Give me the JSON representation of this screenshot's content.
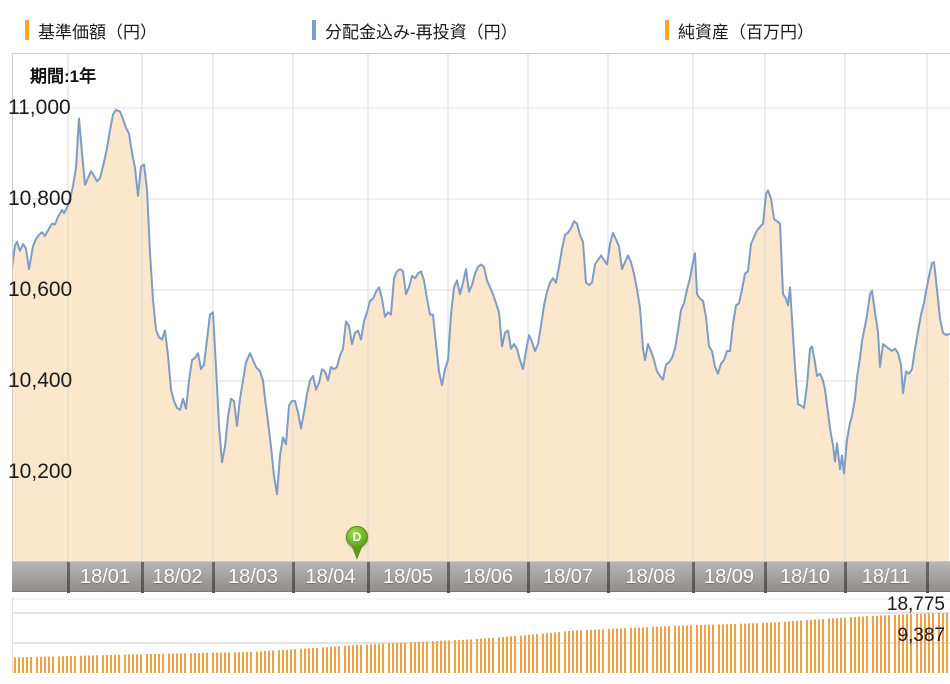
{
  "legend": {
    "items": [
      {
        "label": "基準価額（円）",
        "color": "#F5A623"
      },
      {
        "label": "分配金込み-再投資（円）",
        "color": "#7F9CC5"
      },
      {
        "label": "純資産（百万円）",
        "color": "#F5A623"
      }
    ]
  },
  "period_label": "期間:1年",
  "marker": {
    "label": "D",
    "color": "#6FB024"
  },
  "chart_data": [
    {
      "type": "area",
      "name": "nav_price",
      "title": "基準価額（円）",
      "ylabel": "円",
      "ylim": [
        10000,
        11120
      ],
      "yticks": [
        11000,
        10800,
        10600,
        10400,
        10200
      ],
      "grid": true,
      "x_months": [
        "18/01",
        "18/02",
        "18/03",
        "18/04",
        "18/05",
        "18/06",
        "18/07",
        "18/08",
        "18/09",
        "18/10",
        "18/11"
      ],
      "line_color": "#7F9CC5",
      "fill_color": "#FAE7CC",
      "points": [
        [
          12,
          10648
        ],
        [
          15,
          10698
        ],
        [
          17,
          10706
        ],
        [
          20,
          10686
        ],
        [
          23,
          10701
        ],
        [
          26,
          10691
        ],
        [
          29,
          10646
        ],
        [
          33,
          10696
        ],
        [
          36,
          10712
        ],
        [
          39,
          10721
        ],
        [
          42,
          10727
        ],
        [
          45,
          10719
        ],
        [
          48,
          10731
        ],
        [
          52,
          10746
        ],
        [
          55,
          10744
        ],
        [
          58,
          10761
        ],
        [
          62,
          10776
        ],
        [
          64,
          10769
        ],
        [
          67,
          10781
        ],
        [
          70,
          10800
        ],
        [
          73,
          10829
        ],
        [
          76,
          10868
        ],
        [
          79,
          10977
        ],
        [
          82,
          10902
        ],
        [
          85,
          10831
        ],
        [
          88,
          10846
        ],
        [
          91,
          10861
        ],
        [
          94,
          10851
        ],
        [
          97,
          10839
        ],
        [
          100,
          10846
        ],
        [
          104,
          10881
        ],
        [
          107,
          10912
        ],
        [
          110,
          10951
        ],
        [
          113,
          10986
        ],
        [
          116,
          10996
        ],
        [
          120,
          10992
        ],
        [
          123,
          10976
        ],
        [
          126,
          10956
        ],
        [
          129,
          10944
        ],
        [
          132,
          10901
        ],
        [
          135,
          10869
        ],
        [
          138,
          10807
        ],
        [
          141,
          10871
        ],
        [
          144,
          10876
        ],
        [
          147,
          10821
        ],
        [
          150,
          10681
        ],
        [
          153,
          10579
        ],
        [
          156,
          10512
        ],
        [
          159,
          10496
        ],
        [
          162,
          10491
        ],
        [
          165,
          10511
        ],
        [
          168,
          10456
        ],
        [
          171,
          10381
        ],
        [
          174,
          10356
        ],
        [
          177,
          10341
        ],
        [
          180,
          10336
        ],
        [
          183,
          10361
        ],
        [
          186,
          10339
        ],
        [
          189,
          10401
        ],
        [
          192,
          10446
        ],
        [
          195,
          10451
        ],
        [
          198,
          10461
        ],
        [
          201,
          10426
        ],
        [
          204,
          10436
        ],
        [
          207,
          10491
        ],
        [
          210,
          10546
        ],
        [
          213,
          10551
        ],
        [
          216,
          10431
        ],
        [
          219,
          10301
        ],
        [
          222,
          10221
        ],
        [
          225,
          10256
        ],
        [
          228,
          10321
        ],
        [
          231,
          10361
        ],
        [
          234,
          10356
        ],
        [
          237,
          10301
        ],
        [
          240,
          10361
        ],
        [
          243,
          10401
        ],
        [
          246,
          10441
        ],
        [
          250,
          10461
        ],
        [
          253,
          10446
        ],
        [
          256,
          10431
        ],
        [
          260,
          10421
        ],
        [
          263,
          10401
        ],
        [
          265,
          10361
        ],
        [
          268,
          10311
        ],
        [
          271,
          10256
        ],
        [
          274,
          10191
        ],
        [
          277,
          10151
        ],
        [
          280,
          10236
        ],
        [
          283,
          10276
        ],
        [
          286,
          10261
        ],
        [
          289,
          10346
        ],
        [
          292,
          10356
        ],
        [
          295,
          10356
        ],
        [
          298,
          10331
        ],
        [
          301,
          10296
        ],
        [
          304,
          10331
        ],
        [
          307,
          10371
        ],
        [
          310,
          10401
        ],
        [
          313,
          10411
        ],
        [
          316,
          10381
        ],
        [
          319,
          10396
        ],
        [
          322,
          10426
        ],
        [
          325,
          10421
        ],
        [
          328,
          10401
        ],
        [
          331,
          10431
        ],
        [
          334,
          10426
        ],
        [
          337,
          10431
        ],
        [
          340,
          10456
        ],
        [
          343,
          10471
        ],
        [
          346,
          10531
        ],
        [
          349,
          10521
        ],
        [
          352,
          10481
        ],
        [
          355,
          10506
        ],
        [
          358,
          10511
        ],
        [
          361,
          10491
        ],
        [
          364,
          10531
        ],
        [
          367,
          10551
        ],
        [
          370,
          10576
        ],
        [
          373,
          10581
        ],
        [
          376,
          10596
        ],
        [
          379,
          10606
        ],
        [
          382,
          10581
        ],
        [
          385,
          10541
        ],
        [
          388,
          10551
        ],
        [
          391,
          10546
        ],
        [
          394,
          10626
        ],
        [
          397,
          10641
        ],
        [
          400,
          10646
        ],
        [
          403,
          10641
        ],
        [
          406,
          10591
        ],
        [
          409,
          10606
        ],
        [
          412,
          10631
        ],
        [
          415,
          10626
        ],
        [
          418,
          10636
        ],
        [
          421,
          10641
        ],
        [
          424,
          10621
        ],
        [
          427,
          10581
        ],
        [
          430,
          10546
        ],
        [
          433,
          10546
        ],
        [
          436,
          10481
        ],
        [
          439,
          10421
        ],
        [
          442,
          10391
        ],
        [
          445,
          10426
        ],
        [
          448,
          10446
        ],
        [
          451,
          10546
        ],
        [
          454,
          10606
        ],
        [
          457,
          10621
        ],
        [
          460,
          10591
        ],
        [
          463,
          10616
        ],
        [
          466,
          10646
        ],
        [
          469,
          10596
        ],
        [
          472,
          10611
        ],
        [
          475,
          10636
        ],
        [
          478,
          10651
        ],
        [
          481,
          10656
        ],
        [
          484,
          10651
        ],
        [
          487,
          10621
        ],
        [
          490,
          10606
        ],
        [
          493,
          10591
        ],
        [
          496,
          10571
        ],
        [
          499,
          10551
        ],
        [
          502,
          10476
        ],
        [
          505,
          10506
        ],
        [
          508,
          10511
        ],
        [
          511,
          10471
        ],
        [
          514,
          10481
        ],
        [
          517,
          10471
        ],
        [
          520,
          10446
        ],
        [
          523,
          10426
        ],
        [
          526,
          10466
        ],
        [
          529,
          10501
        ],
        [
          532,
          10486
        ],
        [
          535,
          10466
        ],
        [
          538,
          10481
        ],
        [
          541,
          10521
        ],
        [
          544,
          10566
        ],
        [
          547,
          10596
        ],
        [
          550,
          10616
        ],
        [
          553,
          10626
        ],
        [
          556,
          10616
        ],
        [
          559,
          10651
        ],
        [
          562,
          10691
        ],
        [
          565,
          10721
        ],
        [
          568,
          10726
        ],
        [
          571,
          10736
        ],
        [
          574,
          10751
        ],
        [
          577,
          10746
        ],
        [
          580,
          10721
        ],
        [
          583,
          10706
        ],
        [
          586,
          10616
        ],
        [
          589,
          10611
        ],
        [
          592,
          10616
        ],
        [
          595,
          10656
        ],
        [
          598,
          10666
        ],
        [
          601,
          10676
        ],
        [
          604,
          10666
        ],
        [
          607,
          10656
        ],
        [
          610,
          10701
        ],
        [
          613,
          10726
        ],
        [
          616,
          10711
        ],
        [
          619,
          10696
        ],
        [
          622,
          10646
        ],
        [
          625,
          10661
        ],
        [
          628,
          10676
        ],
        [
          631,
          10661
        ],
        [
          634,
          10636
        ],
        [
          637,
          10601
        ],
        [
          640,
          10561
        ],
        [
          643,
          10471
        ],
        [
          645,
          10446
        ],
        [
          648,
          10481
        ],
        [
          651,
          10466
        ],
        [
          654,
          10446
        ],
        [
          657,
          10421
        ],
        [
          660,
          10411
        ],
        [
          663,
          10403
        ],
        [
          666,
          10436
        ],
        [
          669,
          10441
        ],
        [
          672,
          10451
        ],
        [
          675,
          10471
        ],
        [
          678,
          10511
        ],
        [
          681,
          10556
        ],
        [
          684,
          10571
        ],
        [
          687,
          10601
        ],
        [
          690,
          10626
        ],
        [
          693,
          10661
        ],
        [
          695,
          10681
        ],
        [
          697,
          10591
        ],
        [
          700,
          10581
        ],
        [
          703,
          10576
        ],
        [
          706,
          10541
        ],
        [
          709,
          10476
        ],
        [
          712,
          10466
        ],
        [
          715,
          10431
        ],
        [
          718,
          10416
        ],
        [
          721,
          10438
        ],
        [
          724,
          10446
        ],
        [
          727,
          10466
        ],
        [
          730,
          10466
        ],
        [
          733,
          10526
        ],
        [
          736,
          10566
        ],
        [
          739,
          10571
        ],
        [
          742,
          10601
        ],
        [
          745,
          10636
        ],
        [
          748,
          10641
        ],
        [
          751,
          10701
        ],
        [
          754,
          10716
        ],
        [
          757,
          10731
        ],
        [
          760,
          10739
        ],
        [
          763,
          10746
        ],
        [
          766,
          10811
        ],
        [
          768,
          10819
        ],
        [
          771,
          10801
        ],
        [
          774,
          10756
        ],
        [
          777,
          10751
        ],
        [
          780,
          10746
        ],
        [
          783,
          10591
        ],
        [
          786,
          10581
        ],
        [
          788,
          10566
        ],
        [
          790,
          10606
        ],
        [
          793,
          10501
        ],
        [
          795,
          10431
        ],
        [
          798,
          10349
        ],
        [
          801,
          10346
        ],
        [
          804,
          10341
        ],
        [
          807,
          10391
        ],
        [
          810,
          10471
        ],
        [
          812,
          10476
        ],
        [
          815,
          10441
        ],
        [
          817,
          10411
        ],
        [
          820,
          10416
        ],
        [
          823,
          10401
        ],
        [
          825,
          10381
        ],
        [
          828,
          10331
        ],
        [
          830,
          10296
        ],
        [
          833,
          10259
        ],
        [
          835,
          10223
        ],
        [
          837,
          10263
        ],
        [
          840,
          10206
        ],
        [
          842,
          10236
        ],
        [
          844,
          10197
        ],
        [
          847,
          10271
        ],
        [
          850,
          10308
        ],
        [
          852,
          10323
        ],
        [
          855,
          10361
        ],
        [
          857,
          10408
        ],
        [
          860,
          10451
        ],
        [
          862,
          10488
        ],
        [
          865,
          10521
        ],
        [
          867,
          10544
        ],
        [
          870,
          10591
        ],
        [
          872,
          10598
        ],
        [
          875,
          10551
        ],
        [
          878,
          10508
        ],
        [
          880,
          10431
        ],
        [
          883,
          10481
        ],
        [
          886,
          10476
        ],
        [
          889,
          10471
        ],
        [
          892,
          10466
        ],
        [
          895,
          10471
        ],
        [
          898,
          10461
        ],
        [
          901,
          10436
        ],
        [
          903,
          10373
        ],
        [
          906,
          10421
        ],
        [
          909,
          10416
        ],
        [
          912,
          10426
        ],
        [
          915,
          10471
        ],
        [
          918,
          10509
        ],
        [
          921,
          10546
        ],
        [
          924,
          10572
        ],
        [
          927,
          10608
        ],
        [
          930,
          10641
        ],
        [
          932,
          10659
        ],
        [
          934,
          10661
        ],
        [
          937,
          10601
        ],
        [
          940,
          10537
        ],
        [
          943,
          10506
        ],
        [
          946,
          10501
        ],
        [
          949,
          10503
        ]
      ]
    },
    {
      "type": "bar",
      "name": "net_assets",
      "title": "純資産（百万円）",
      "gridline_values": [
        18775,
        9387
      ],
      "max_label": "18,775",
      "mid_label": "9,387",
      "bar_color": "#EFA143",
      "ylim": [
        0,
        19600
      ],
      "envelope": [
        [
          0,
          4850
        ],
        [
          0.06,
          5300
        ],
        [
          0.12,
          5750
        ],
        [
          0.18,
          6150
        ],
        [
          0.25,
          6550
        ],
        [
          0.31,
          7600
        ],
        [
          0.37,
          8800
        ],
        [
          0.43,
          9700
        ],
        [
          0.49,
          10500
        ],
        [
          0.55,
          11900
        ],
        [
          0.6,
          13300
        ],
        [
          0.66,
          14100
        ],
        [
          0.71,
          14800
        ],
        [
          0.76,
          15250
        ],
        [
          0.81,
          15750
        ],
        [
          0.86,
          16800
        ],
        [
          0.92,
          17900
        ],
        [
          0.96,
          18400
        ],
        [
          1,
          18775
        ]
      ]
    }
  ]
}
